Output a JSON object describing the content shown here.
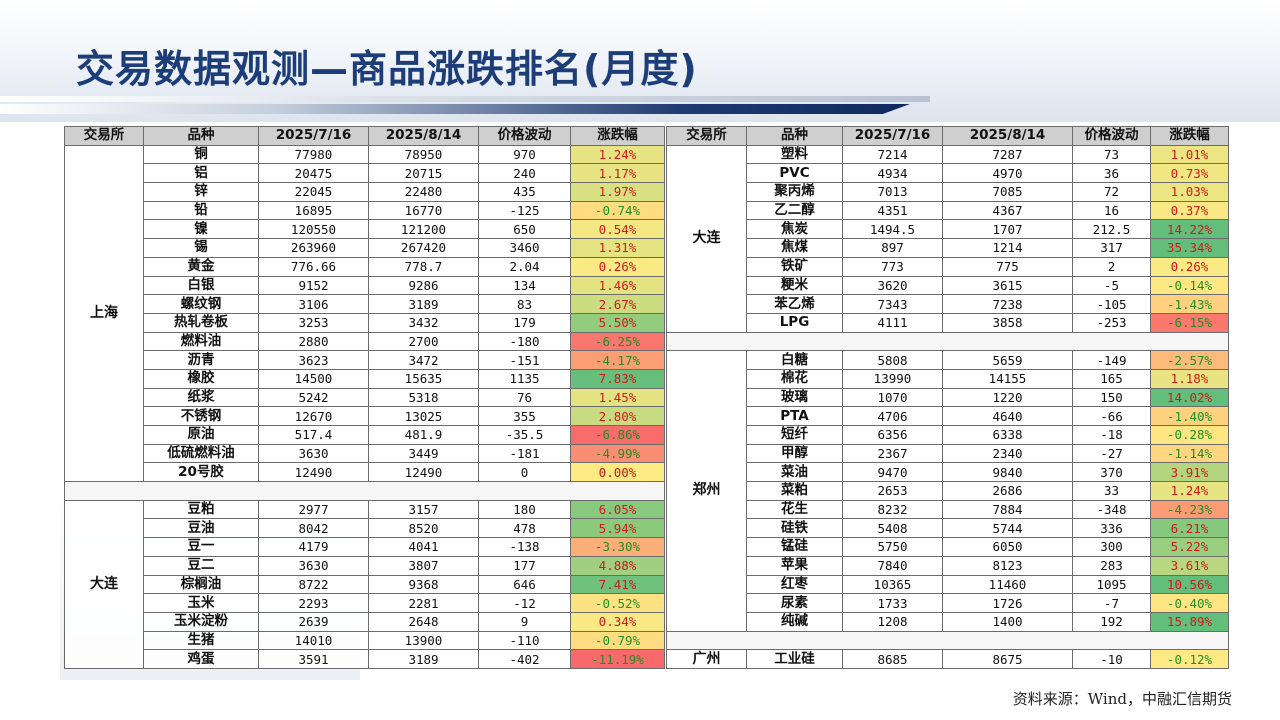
{
  "title": "交易数据观测—商品涨跌排名(月度)",
  "headers": [
    "交易所",
    "品种",
    "2025/7/16",
    "2025/8/14",
    "价格波动",
    "涨跌幅"
  ],
  "left_groups": [
    {
      "exchange": "上海",
      "rows": [
        {
          "name": "铜",
          "p1": "77980",
          "p2": "78950",
          "diff": "970",
          "pct": "1.24%",
          "v": 1.24
        },
        {
          "name": "铝",
          "p1": "20475",
          "p2": "20715",
          "diff": "240",
          "pct": "1.17%",
          "v": 1.17
        },
        {
          "name": "锌",
          "p1": "22045",
          "p2": "22480",
          "diff": "435",
          "pct": "1.97%",
          "v": 1.97
        },
        {
          "name": "铅",
          "p1": "16895",
          "p2": "16770",
          "diff": "-125",
          "pct": "-0.74%",
          "v": -0.74
        },
        {
          "name": "镍",
          "p1": "120550",
          "p2": "121200",
          "diff": "650",
          "pct": "0.54%",
          "v": 0.54
        },
        {
          "name": "锡",
          "p1": "263960",
          "p2": "267420",
          "diff": "3460",
          "pct": "1.31%",
          "v": 1.31
        },
        {
          "name": "黄金",
          "p1": "776.66",
          "p2": "778.7",
          "diff": "2.04",
          "pct": "0.26%",
          "v": 0.26
        },
        {
          "name": "白银",
          "p1": "9152",
          "p2": "9286",
          "diff": "134",
          "pct": "1.46%",
          "v": 1.46
        },
        {
          "name": "螺纹钢",
          "p1": "3106",
          "p2": "3189",
          "diff": "83",
          "pct": "2.67%",
          "v": 2.67
        },
        {
          "name": "热轧卷板",
          "p1": "3253",
          "p2": "3432",
          "diff": "179",
          "pct": "5.50%",
          "v": 5.5
        },
        {
          "name": "燃料油",
          "p1": "2880",
          "p2": "2700",
          "diff": "-180",
          "pct": "-6.25%",
          "v": -6.25
        },
        {
          "name": "沥青",
          "p1": "3623",
          "p2": "3472",
          "diff": "-151",
          "pct": "-4.17%",
          "v": -4.17
        },
        {
          "name": "橡胶",
          "p1": "14500",
          "p2": "15635",
          "diff": "1135",
          "pct": "7.83%",
          "v": 7.83
        },
        {
          "name": "纸浆",
          "p1": "5242",
          "p2": "5318",
          "diff": "76",
          "pct": "1.45%",
          "v": 1.45
        },
        {
          "name": "不锈钢",
          "p1": "12670",
          "p2": "13025",
          "diff": "355",
          "pct": "2.80%",
          "v": 2.8
        },
        {
          "name": "原油",
          "p1": "517.4",
          "p2": "481.9",
          "diff": "-35.5",
          "pct": "-6.86%",
          "v": -6.86
        },
        {
          "name": "低硫燃料油",
          "p1": "3630",
          "p2": "3449",
          "diff": "-181",
          "pct": "-4.99%",
          "v": -4.99
        },
        {
          "name": "20号胶",
          "p1": "12490",
          "p2": "12490",
          "diff": "0",
          "pct": "0.00%",
          "v": 0.0
        }
      ]
    },
    {
      "exchange": "大连",
      "rows": [
        {
          "name": "豆粕",
          "p1": "2977",
          "p2": "3157",
          "diff": "180",
          "pct": "6.05%",
          "v": 6.05
        },
        {
          "name": "豆油",
          "p1": "8042",
          "p2": "8520",
          "diff": "478",
          "pct": "5.94%",
          "v": 5.94
        },
        {
          "name": "豆一",
          "p1": "4179",
          "p2": "4041",
          "diff": "-138",
          "pct": "-3.30%",
          "v": -3.3
        },
        {
          "name": "豆二",
          "p1": "3630",
          "p2": "3807",
          "diff": "177",
          "pct": "4.88%",
          "v": 4.88
        },
        {
          "name": "棕榈油",
          "p1": "8722",
          "p2": "9368",
          "diff": "646",
          "pct": "7.41%",
          "v": 7.41
        },
        {
          "name": "玉米",
          "p1": "2293",
          "p2": "2281",
          "diff": "-12",
          "pct": "-0.52%",
          "v": -0.52
        },
        {
          "name": "玉米淀粉",
          "p1": "2639",
          "p2": "2648",
          "diff": "9",
          "pct": "0.34%",
          "v": 0.34
        },
        {
          "name": "生猪",
          "p1": "14010",
          "p2": "13900",
          "diff": "-110",
          "pct": "-0.79%",
          "v": -0.79
        },
        {
          "name": "鸡蛋",
          "p1": "3591",
          "p2": "3189",
          "diff": "-402",
          "pct": "-11.19%",
          "v": -11.19
        }
      ]
    }
  ],
  "right_groups": [
    {
      "exchange": "大连",
      "rows": [
        {
          "name": "塑料",
          "p1": "7214",
          "p2": "7287",
          "diff": "73",
          "pct": "1.01%",
          "v": 1.01
        },
        {
          "name": "PVC",
          "p1": "4934",
          "p2": "4970",
          "diff": "36",
          "pct": "0.73%",
          "v": 0.73
        },
        {
          "name": "聚丙烯",
          "p1": "7013",
          "p2": "7085",
          "diff": "72",
          "pct": "1.03%",
          "v": 1.03
        },
        {
          "name": "乙二醇",
          "p1": "4351",
          "p2": "4367",
          "diff": "16",
          "pct": "0.37%",
          "v": 0.37
        },
        {
          "name": "焦炭",
          "p1": "1494.5",
          "p2": "1707",
          "diff": "212.5",
          "pct": "14.22%",
          "v": 14.22
        },
        {
          "name": "焦煤",
          "p1": "897",
          "p2": "1214",
          "diff": "317",
          "pct": "35.34%",
          "v": 35.34
        },
        {
          "name": "铁矿",
          "p1": "773",
          "p2": "775",
          "diff": "2",
          "pct": "0.26%",
          "v": 0.26
        },
        {
          "name": "粳米",
          "p1": "3620",
          "p2": "3615",
          "diff": "-5",
          "pct": "-0.14%",
          "v": -0.14
        },
        {
          "name": "苯乙烯",
          "p1": "7343",
          "p2": "7238",
          "diff": "-105",
          "pct": "-1.43%",
          "v": -1.43
        },
        {
          "name": "LPG",
          "p1": "4111",
          "p2": "3858",
          "diff": "-253",
          "pct": "-6.15%",
          "v": -6.15
        }
      ]
    },
    {
      "exchange": "郑州",
      "rows": [
        {
          "name": "白糖",
          "p1": "5808",
          "p2": "5659",
          "diff": "-149",
          "pct": "-2.57%",
          "v": -2.57
        },
        {
          "name": "棉花",
          "p1": "13990",
          "p2": "14155",
          "diff": "165",
          "pct": "1.18%",
          "v": 1.18
        },
        {
          "name": "玻璃",
          "p1": "1070",
          "p2": "1220",
          "diff": "150",
          "pct": "14.02%",
          "v": 14.02
        },
        {
          "name": "PTA",
          "p1": "4706",
          "p2": "4640",
          "diff": "-66",
          "pct": "-1.40%",
          "v": -1.4
        },
        {
          "name": "短纤",
          "p1": "6356",
          "p2": "6338",
          "diff": "-18",
          "pct": "-0.28%",
          "v": -0.28
        },
        {
          "name": "甲醇",
          "p1": "2367",
          "p2": "2340",
          "diff": "-27",
          "pct": "-1.14%",
          "v": -1.14
        },
        {
          "name": "菜油",
          "p1": "9470",
          "p2": "9840",
          "diff": "370",
          "pct": "3.91%",
          "v": 3.91
        },
        {
          "name": "菜粕",
          "p1": "2653",
          "p2": "2686",
          "diff": "33",
          "pct": "1.24%",
          "v": 1.24
        },
        {
          "name": "花生",
          "p1": "8232",
          "p2": "7884",
          "diff": "-348",
          "pct": "-4.23%",
          "v": -4.23
        },
        {
          "name": "硅铁",
          "p1": "5408",
          "p2": "5744",
          "diff": "336",
          "pct": "6.21%",
          "v": 6.21
        },
        {
          "name": "锰硅",
          "p1": "5750",
          "p2": "6050",
          "diff": "300",
          "pct": "5.22%",
          "v": 5.22
        },
        {
          "name": "苹果",
          "p1": "7840",
          "p2": "8123",
          "diff": "283",
          "pct": "3.61%",
          "v": 3.61
        },
        {
          "name": "红枣",
          "p1": "10365",
          "p2": "11460",
          "diff": "1095",
          "pct": "10.56%",
          "v": 10.56
        },
        {
          "name": "尿素",
          "p1": "1733",
          "p2": "1726",
          "diff": "-7",
          "pct": "-0.40%",
          "v": -0.4
        },
        {
          "name": "纯碱",
          "p1": "1208",
          "p2": "1400",
          "diff": "192",
          "pct": "15.89%",
          "v": 15.89
        }
      ]
    },
    {
      "exchange": "广州",
      "rows": [
        {
          "name": "工业硅",
          "p1": "8685",
          "p2": "8675",
          "diff": "-10",
          "pct": "-0.12%",
          "v": -0.12
        }
      ]
    }
  ],
  "source": "资料来源：Wind，中融汇信期货",
  "colors": {
    "title": "#1c3d78",
    "header_bg": "#cfcfcf",
    "up_text": "#d11a1a",
    "down_text": "#1f8f24",
    "scale_green": "#63be7b",
    "scale_yellow": "#ffeb84",
    "scale_red": "#f8696b"
  }
}
